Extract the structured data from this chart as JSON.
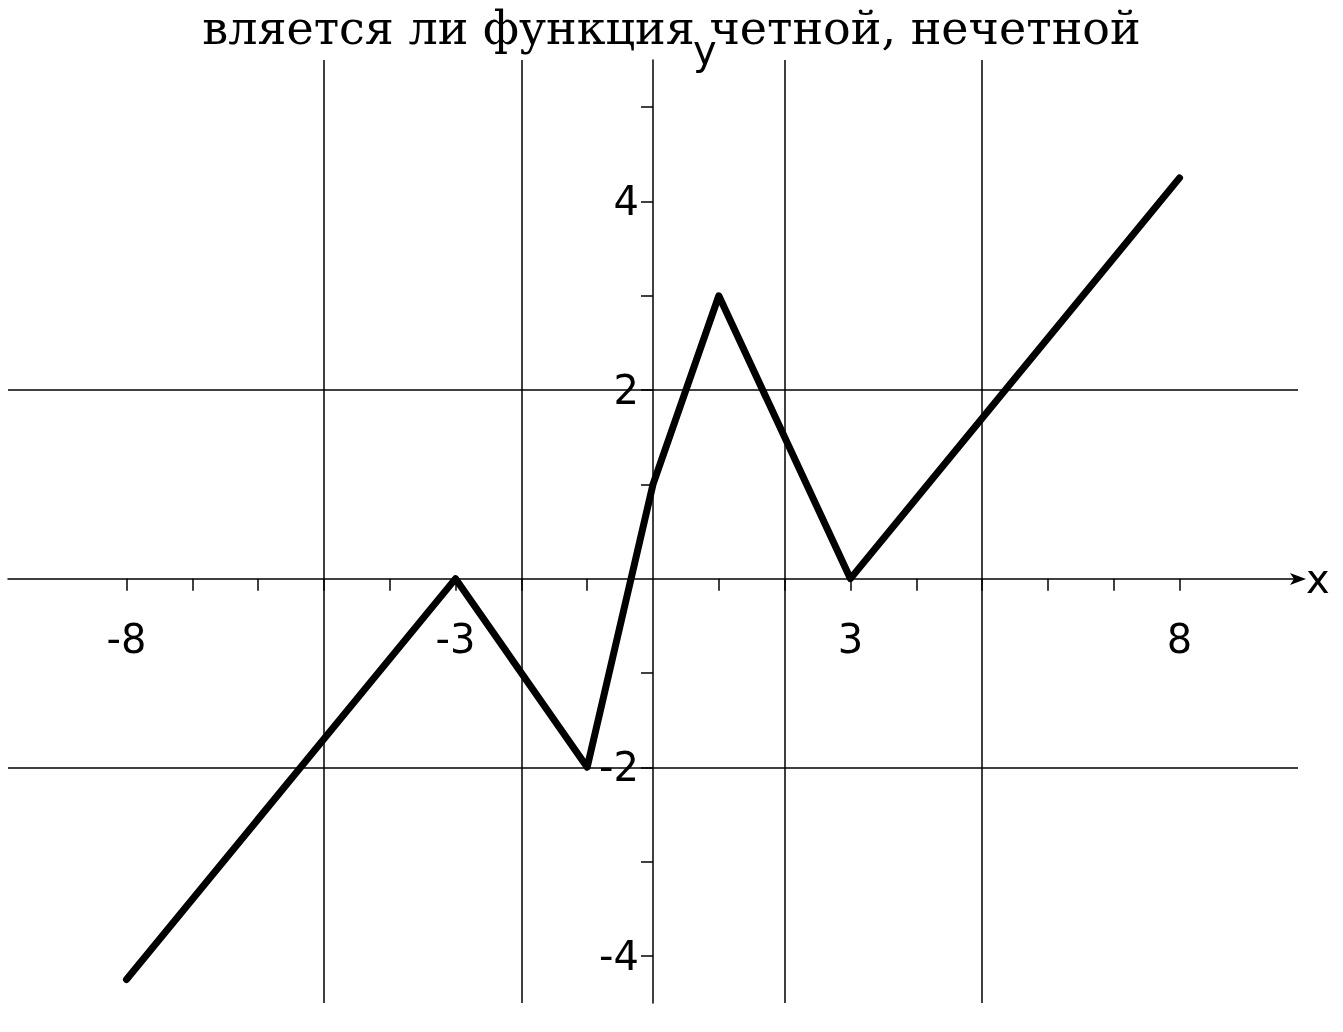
{
  "chart_data": {
    "type": "line",
    "title": "вляется ли функция четной, нечетной",
    "xlabel": "x",
    "ylabel": "y",
    "x": [
      -8,
      -3,
      -1,
      0,
      1,
      3,
      8
    ],
    "series": [
      {
        "color": "#000000",
        "values": [
          -4.25,
          0,
          -2,
          1,
          3,
          0,
          4.25
        ]
      }
    ],
    "xlim": [
      -9.8,
      9.8
    ],
    "ylim": [
      -4.5,
      5.5
    ],
    "xticks": [
      -8,
      {
        "value": -7,
        "label": null
      },
      {
        "value": -6,
        "label": null
      },
      {
        "value": -5,
        "label": null
      },
      {
        "value": -4,
        "label": null
      },
      -3,
      {
        "value": -2,
        "label": null
      },
      {
        "value": -1,
        "label": null
      },
      {
        "value": 1,
        "label": null
      },
      {
        "value": 2,
        "label": null
      },
      3,
      {
        "value": 4,
        "label": null
      },
      {
        "value": 5,
        "label": null
      },
      {
        "value": 6,
        "label": null
      },
      {
        "value": 7,
        "label": null
      },
      8
    ],
    "yticks": [
      -4,
      {
        "value": -3,
        "label": null
      },
      -2,
      {
        "value": -1,
        "label": null
      },
      {
        "value": 1,
        "label": null
      },
      2,
      {
        "value": 3,
        "label": null
      },
      4,
      {
        "value": 5,
        "label": null
      }
    ],
    "ref_lines": [
      {
        "axis": "x",
        "value": -5
      },
      {
        "axis": "x",
        "value": -2
      },
      {
        "axis": "x",
        "value": 2
      },
      {
        "axis": "x",
        "value": 5
      },
      {
        "axis": "y",
        "value": -2
      },
      {
        "axis": "y",
        "value": 2
      }
    ],
    "grid": false,
    "marker": "none",
    "line_style": "solid"
  }
}
